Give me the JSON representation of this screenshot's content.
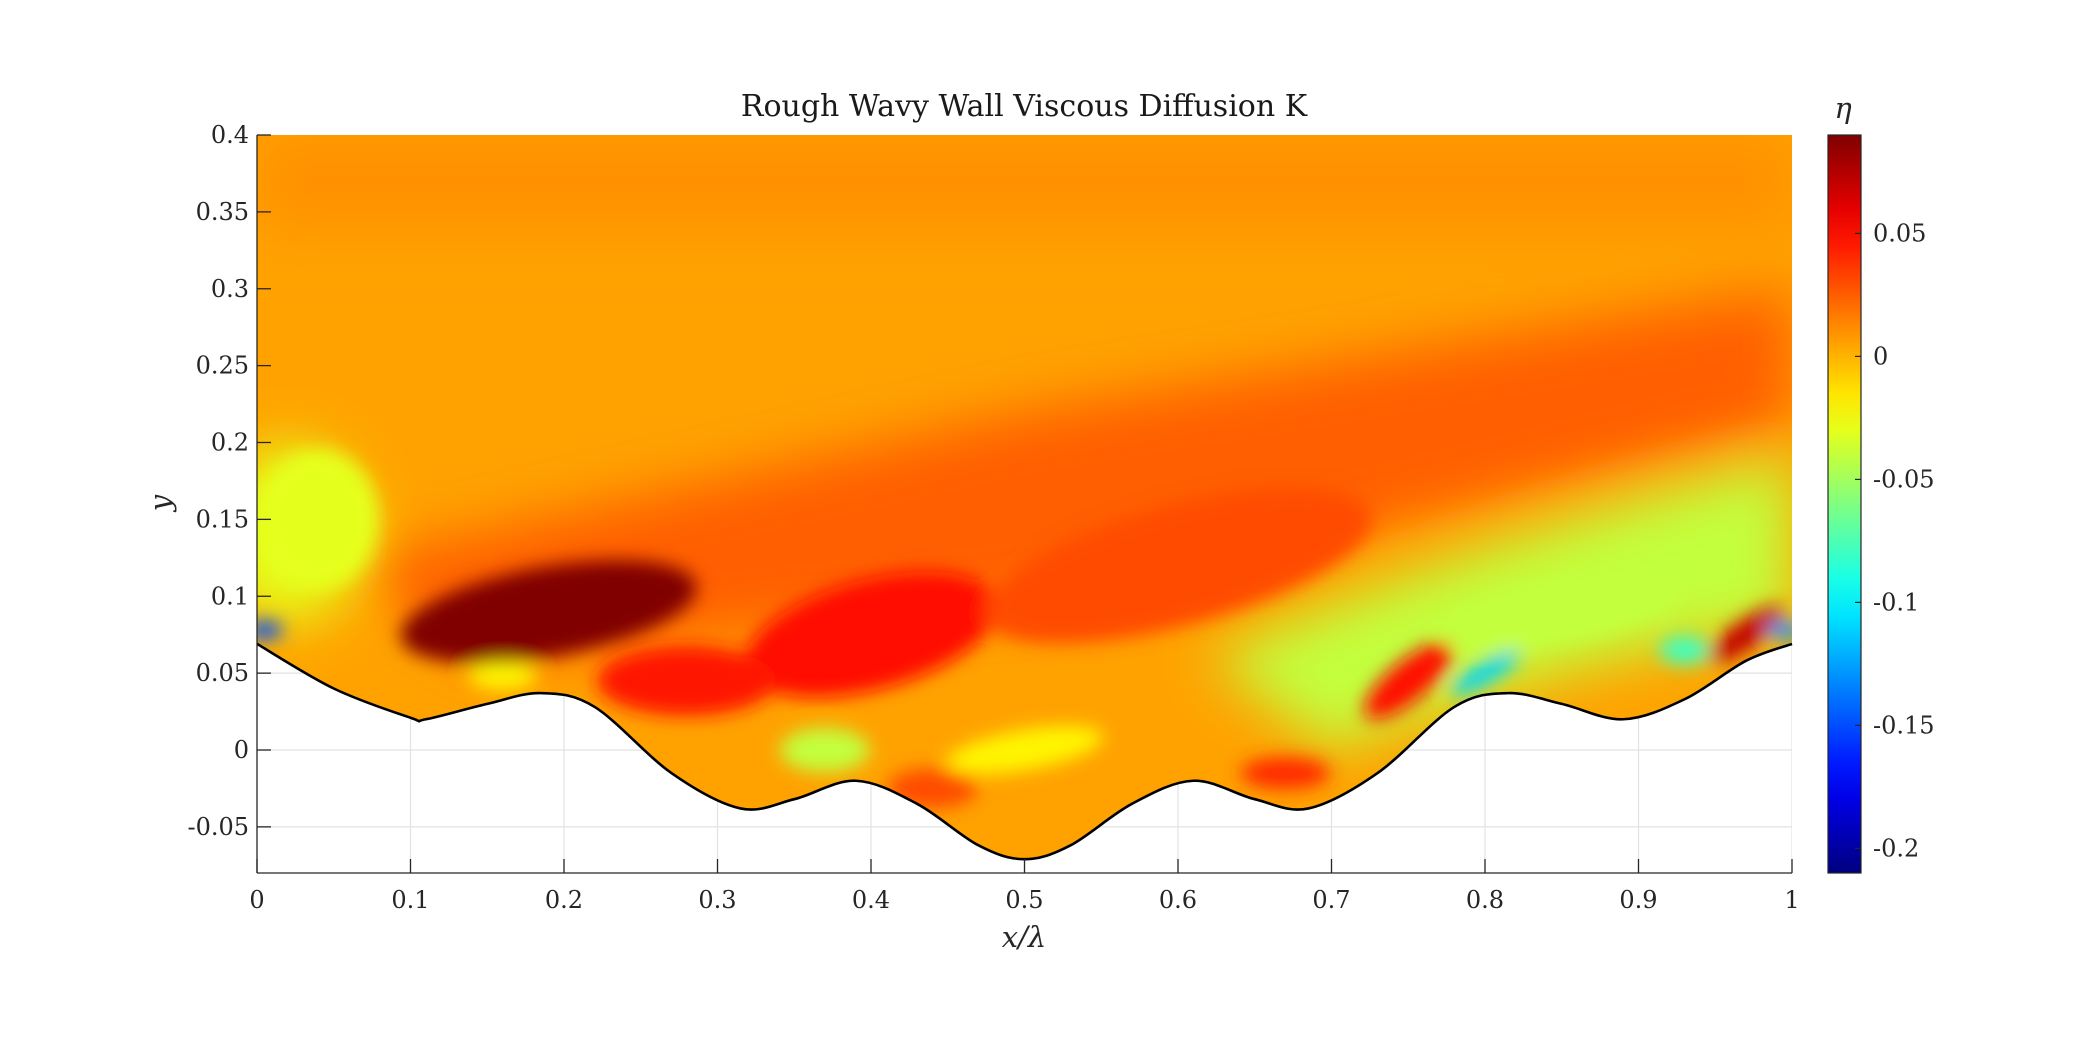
{
  "chart_data": {
    "type": "heatmap",
    "title": "Rough Wavy Wall Viscous Diffusion K",
    "xlabel": "x/λ",
    "ylabel": "y",
    "colorbar_label": "η",
    "xlim": [
      0,
      1
    ],
    "ylim": [
      -0.08,
      0.4
    ],
    "clim": [
      -0.21,
      0.09
    ],
    "colormap": "jet",
    "grid": true,
    "x_ticks": [
      0,
      0.1,
      0.2,
      0.3,
      0.4,
      0.5,
      0.6,
      0.7,
      0.8,
      0.9,
      1
    ],
    "x_tick_labels": [
      "0",
      "0.1",
      "0.2",
      "0.3",
      "0.4",
      "0.5",
      "0.6",
      "0.7",
      "0.8",
      "0.9",
      "1"
    ],
    "y_ticks": [
      -0.05,
      0,
      0.05,
      0.1,
      0.15,
      0.2,
      0.25,
      0.3,
      0.35,
      0.4
    ],
    "y_tick_labels": [
      "-0.05",
      "0",
      "0.05",
      "0.1",
      "0.15",
      "0.2",
      "0.25",
      "0.3",
      "0.35",
      "0.4"
    ],
    "colorbar_ticks": [
      0.05,
      0,
      -0.05,
      -0.1,
      -0.15,
      -0.2
    ],
    "colorbar_tick_labels": [
      "0.05",
      "0",
      "-0.05",
      "-0.1",
      "-0.15",
      "-0.2"
    ],
    "wall_profile": {
      "x": [
        0,
        0.05,
        0.1,
        0.11,
        0.15,
        0.185,
        0.22,
        0.27,
        0.315,
        0.35,
        0.39,
        0.43,
        0.47,
        0.5,
        0.53,
        0.57,
        0.61,
        0.65,
        0.685,
        0.73,
        0.78,
        0.815,
        0.85,
        0.89,
        0.93,
        0.97,
        1.0
      ],
      "y": [
        0.069,
        0.04,
        0.021,
        0.02,
        0.03,
        0.037,
        0.028,
        -0.015,
        -0.038,
        -0.032,
        -0.02,
        -0.035,
        -0.062,
        -0.071,
        -0.062,
        -0.035,
        -0.02,
        -0.032,
        -0.038,
        -0.015,
        0.028,
        0.037,
        0.03,
        0.02,
        0.033,
        0.058,
        0.069
      ]
    },
    "field_features": [
      {
        "x": 0.19,
        "y": 0.09,
        "value": 0.09
      },
      {
        "x": 0.4,
        "y": 0.075,
        "value": 0.05
      },
      {
        "x": 0.28,
        "y": 0.045,
        "value": 0.045
      },
      {
        "x": 0.6,
        "y": 0.12,
        "value": 0.03
      },
      {
        "x": 0.75,
        "y": 0.045,
        "value": 0.05
      },
      {
        "x": 0.97,
        "y": 0.075,
        "value": 0.07
      },
      {
        "x": 0.005,
        "y": 0.078,
        "value": -0.15
      },
      {
        "x": 0.995,
        "y": 0.078,
        "value": -0.13
      },
      {
        "x": 0.8,
        "y": 0.05,
        "value": -0.11
      },
      {
        "x": 0.93,
        "y": 0.065,
        "value": -0.08
      },
      {
        "x": 0.85,
        "y": 0.09,
        "value": -0.04
      },
      {
        "x": 0.04,
        "y": 0.15,
        "value": -0.03
      },
      {
        "x": 0.37,
        "y": 0.0,
        "value": -0.04
      },
      {
        "x": 0.5,
        "y": 0.0,
        "value": -0.02
      },
      {
        "x": 0.67,
        "y": -0.015,
        "value": 0.04
      },
      {
        "x": 0.44,
        "y": -0.025,
        "value": 0.03
      },
      {
        "x": 0.16,
        "y": 0.048,
        "value": -0.02
      }
    ]
  }
}
